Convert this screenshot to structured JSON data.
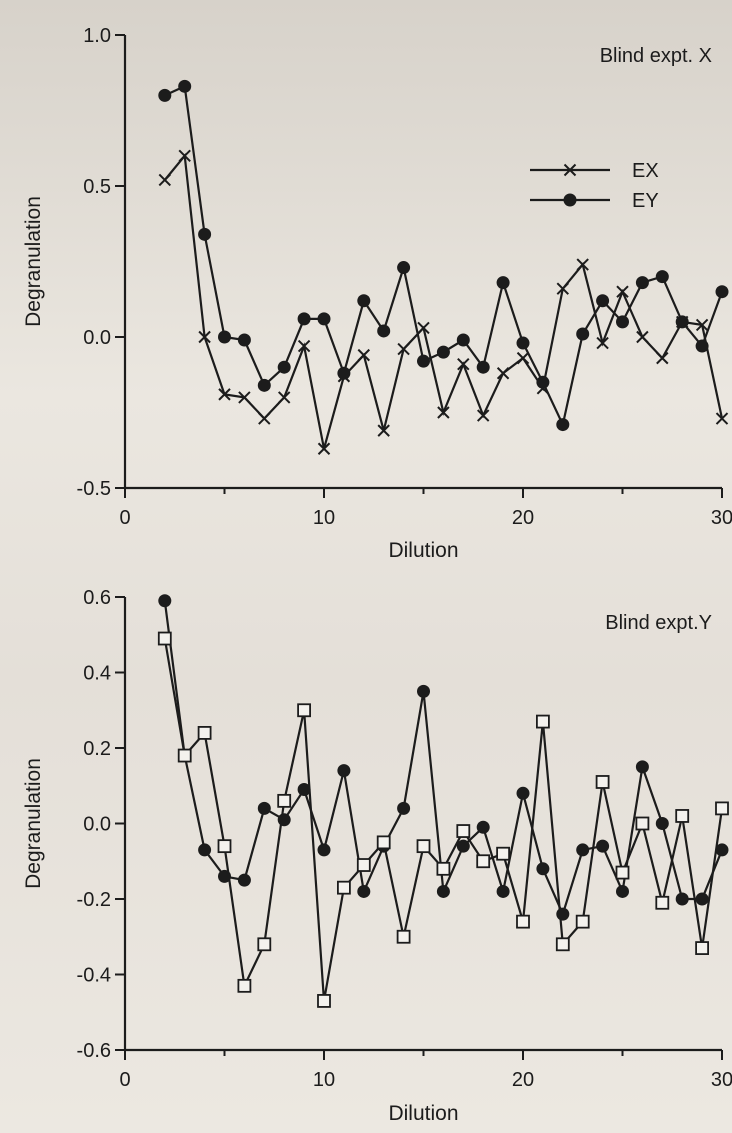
{
  "chart_data": [
    {
      "type": "line",
      "title": "Blind expt. X",
      "xlabel": "Dilution",
      "ylabel": "Degranulation",
      "xlim": [
        0,
        30
      ],
      "ylim": [
        -0.5,
        1.0
      ],
      "xticks": [
        "0",
        "10",
        "20",
        "30"
      ],
      "yticks": [
        "1.0",
        "0.5",
        "0.0",
        "-0.5"
      ],
      "legend_position": "upper-right",
      "series": [
        {
          "name": "EX",
          "marker": "x",
          "x": [
            2,
            3,
            4,
            5,
            6,
            7,
            8,
            9,
            10,
            11,
            12,
            13,
            14,
            15,
            16,
            17,
            18,
            19,
            20,
            21,
            22,
            23,
            24,
            25,
            26,
            27,
            28,
            29,
            30
          ],
          "y": [
            0.52,
            0.6,
            0.0,
            -0.19,
            -0.2,
            -0.27,
            -0.2,
            -0.03,
            -0.37,
            -0.13,
            -0.06,
            -0.31,
            -0.04,
            0.03,
            -0.25,
            -0.09,
            -0.26,
            -0.12,
            -0.07,
            -0.17,
            0.16,
            0.24,
            -0.02,
            0.15,
            0.0,
            -0.07,
            0.05,
            0.04,
            -0.27
          ]
        },
        {
          "name": "EY",
          "marker": "dot",
          "x": [
            2,
            3,
            4,
            5,
            6,
            7,
            8,
            9,
            10,
            11,
            12,
            13,
            14,
            15,
            16,
            17,
            18,
            19,
            20,
            21,
            22,
            23,
            24,
            25,
            26,
            27,
            28,
            29,
            30
          ],
          "y": [
            0.8,
            0.83,
            0.34,
            0.0,
            -0.01,
            -0.16,
            -0.1,
            0.06,
            0.06,
            -0.12,
            0.12,
            0.02,
            0.23,
            -0.08,
            -0.05,
            -0.01,
            -0.1,
            0.18,
            -0.02,
            -0.15,
            -0.29,
            0.01,
            0.12,
            0.05,
            0.18,
            0.2,
            0.05,
            -0.03,
            0.15
          ]
        }
      ]
    },
    {
      "type": "line",
      "title": "Blind expt.Y",
      "xlabel": "Dilution",
      "ylabel": "Degranulation",
      "xlim": [
        0,
        30
      ],
      "ylim": [
        -0.6,
        0.6
      ],
      "xticks": [
        "0",
        "10",
        "20",
        "30"
      ],
      "yticks": [
        "0.6",
        "0.4",
        "0.2",
        "0.0",
        "-0.2",
        "-0.4",
        "-0.6"
      ],
      "series": [
        {
          "marker": "dot",
          "x": [
            2,
            3,
            4,
            5,
            6,
            7,
            8,
            9,
            10,
            11,
            12,
            13,
            14,
            15,
            16,
            17,
            18,
            19,
            20,
            21,
            22,
            23,
            24,
            25,
            26,
            27,
            28,
            29,
            30
          ],
          "y": [
            0.59,
            0.18,
            -0.07,
            -0.14,
            -0.15,
            0.04,
            0.01,
            0.09,
            -0.07,
            0.14,
            -0.18,
            -0.06,
            0.04,
            0.35,
            -0.18,
            -0.06,
            -0.01,
            -0.18,
            0.08,
            -0.12,
            -0.24,
            -0.07,
            -0.06,
            -0.18,
            0.15,
            0.0,
            -0.2,
            -0.2,
            -0.07
          ]
        },
        {
          "marker": "square",
          "x": [
            2,
            3,
            4,
            5,
            6,
            7,
            8,
            9,
            10,
            11,
            12,
            13,
            14,
            15,
            16,
            17,
            18,
            19,
            20,
            21,
            22,
            23,
            24,
            25,
            26,
            27,
            28,
            29,
            30
          ],
          "y": [
            0.49,
            0.18,
            0.24,
            -0.06,
            -0.43,
            -0.32,
            0.06,
            0.3,
            -0.47,
            -0.17,
            -0.11,
            -0.05,
            -0.3,
            -0.06,
            -0.12,
            -0.02,
            -0.1,
            -0.08,
            -0.26,
            0.27,
            -0.32,
            -0.26,
            0.11,
            -0.13,
            0.0,
            -0.21,
            0.02,
            -0.33,
            0.04
          ]
        }
      ]
    }
  ]
}
